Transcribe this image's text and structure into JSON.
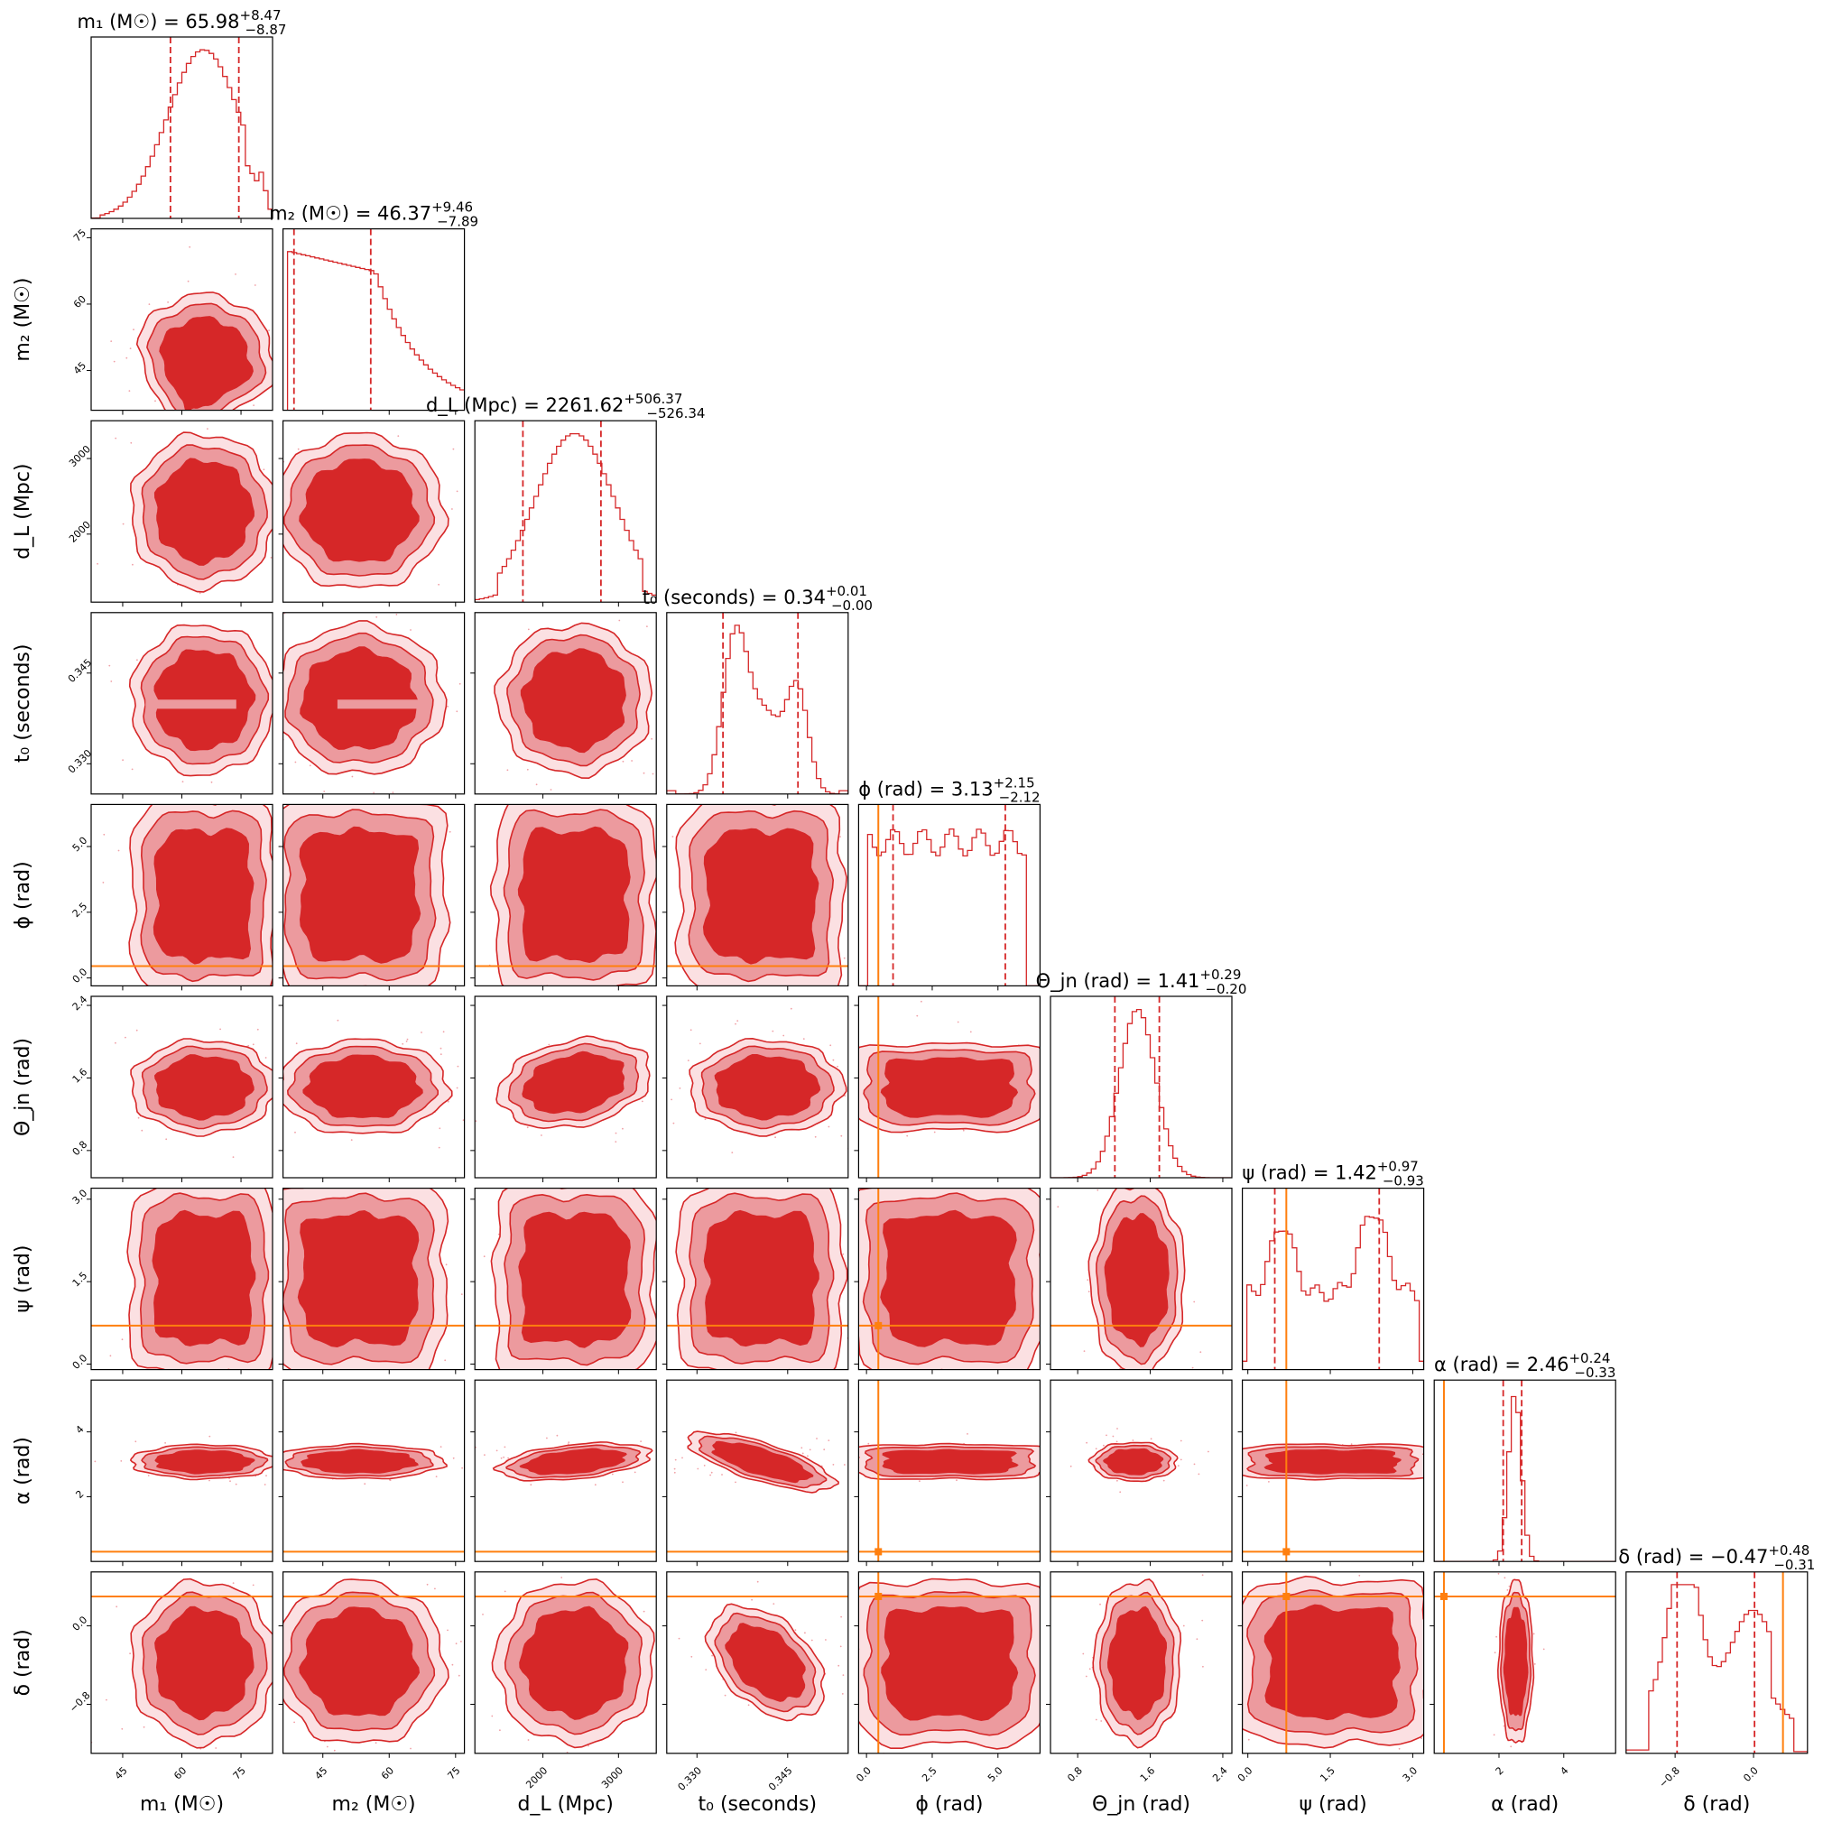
{
  "chart_data": {
    "type": "corner",
    "contour_color": "#d62728",
    "truth_color": "#ff7f0e",
    "parameters": [
      {
        "key": "m1",
        "label": "m₁ (M☉)",
        "title_name": "m₁ (M☉)",
        "median": "65.98",
        "plus": "+8.47",
        "minus": "−8.87",
        "range": [
          37,
          83
        ],
        "q_lo": 57.11,
        "q_hi": 74.45,
        "ticks": [
          45,
          60,
          75
        ],
        "tick_labels": [
          "45",
          "60",
          "75"
        ],
        "truth": null,
        "peaks": [
          [
            66,
            1.0,
            9
          ]
        ],
        "hist_shape": "m1"
      },
      {
        "key": "m2",
        "label": "m₂ (M☉)",
        "title_name": "m₂ (M☉)",
        "median": "46.37",
        "plus": "+9.46",
        "minus": "−7.89",
        "range": [
          36,
          77
        ],
        "q_lo": 38.48,
        "q_hi": 55.83,
        "ticks": [
          45,
          60,
          75
        ],
        "tick_labels": [
          "45",
          "60",
          "75"
        ],
        "truth": null,
        "hist_shape": "m2"
      },
      {
        "key": "dL",
        "label": "d_L (Mpc)",
        "title_name": "d_L (Mpc)",
        "median": "2261.62",
        "plus": "+506.37",
        "minus": "−526.34",
        "range": [
          1100,
          3500
        ],
        "q_lo": 1735.28,
        "q_hi": 2767.99,
        "ticks": [
          2000,
          3000
        ],
        "tick_labels": [
          "2000",
          "3000"
        ],
        "truth": null,
        "hist_shape": "dL"
      },
      {
        "key": "t0",
        "label": "t₀ (seconds)",
        "title_name": "t₀ (seconds)",
        "median": "0.34",
        "plus": "+0.01",
        "minus": "−0.00",
        "range": [
          0.325,
          0.355
        ],
        "q_lo": 0.3343,
        "q_hi": 0.3467,
        "ticks": [
          0.33,
          0.345
        ],
        "tick_labels": [
          "0.330",
          "0.345"
        ],
        "truth": null,
        "hist_shape": "t0"
      },
      {
        "key": "phi",
        "label": "ϕ (rad)",
        "title_name": "ϕ (rad)",
        "median": "3.13",
        "plus": "+2.15",
        "minus": "−2.12",
        "range": [
          -0.3,
          6.6
        ],
        "q_lo": 1.01,
        "q_hi": 5.28,
        "ticks": [
          0.0,
          2.5,
          5.0
        ],
        "tick_labels": [
          "0.0",
          "2.5",
          "5.0"
        ],
        "truth": 0.45,
        "hist_shape": "phi"
      },
      {
        "key": "theta",
        "label": "Θ_jn (rad)",
        "title_name": "Θ_jn (rad)",
        "median": "1.41",
        "plus": "+0.29",
        "minus": "−0.20",
        "range": [
          0.5,
          2.5
        ],
        "q_lo": 1.21,
        "q_hi": 1.7,
        "ticks": [
          0.8,
          1.6,
          2.4
        ],
        "tick_labels": [
          "0.8",
          "1.6",
          "2.4"
        ],
        "truth": null,
        "hist_shape": "theta"
      },
      {
        "key": "psi",
        "label": "ψ (rad)",
        "title_name": "ψ (rad)",
        "median": "1.42",
        "plus": "+0.97",
        "minus": "−0.93",
        "range": [
          -0.1,
          3.2
        ],
        "q_lo": 0.49,
        "q_hi": 2.39,
        "ticks": [
          0.0,
          1.5,
          3.0
        ],
        "tick_labels": [
          "0.0",
          "1.5",
          "3.0"
        ],
        "truth": 0.7,
        "hist_shape": "psi"
      },
      {
        "key": "alpha",
        "label": "α (rad)",
        "title_name": "α (rad)",
        "median": "2.46",
        "plus": "+0.24",
        "minus": "−0.33",
        "range": [
          0.0,
          5.6
        ],
        "q_lo": 2.13,
        "q_hi": 2.7,
        "ticks": [
          2,
          4
        ],
        "tick_labels": [
          "2",
          "4"
        ],
        "truth": 0.3,
        "hist_shape": "alpha"
      },
      {
        "key": "delta",
        "label": "δ (rad)",
        "title_name": "δ (rad)",
        "median": "−0.47",
        "plus": "+0.48",
        "minus": "−0.31",
        "range": [
          -1.3,
          0.55
        ],
        "q_lo": -0.78,
        "q_hi": 0.01,
        "ticks": [
          -0.8,
          0.0
        ],
        "tick_labels": [
          "−0.8",
          "0.0"
        ],
        "truth": 0.3,
        "hist_shape": "delta"
      }
    ]
  }
}
